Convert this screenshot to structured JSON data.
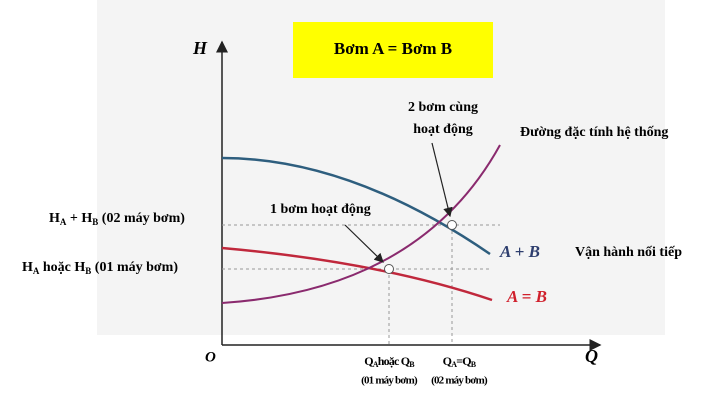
{
  "title": "Bơm A = Bơm B",
  "axis": {
    "y": "H",
    "x": "Q",
    "origin": "O"
  },
  "two_pumps": {
    "line1": "2 bơm cùng",
    "line2": "hoạt động"
  },
  "system_curve": "Đường đặc tính hệ thống",
  "one_pump": "1 bơm hoạt động",
  "curve_sum": "A + B",
  "curve_single": "A = B",
  "series_operation": "Vận hành nối tiếp",
  "h_sum": {
    "h1": "H",
    "s1": "A",
    "mid": " + H",
    "s2": "B",
    "rest": " (02 máy bơm)"
  },
  "h_single": {
    "h1": "H",
    "s1": "A",
    "mid": " hoặc H",
    "s2": "B",
    "rest": " (01 máy bơm)"
  },
  "q_single": {
    "q1": "Q",
    "s1": "A",
    "mid": "hoặc Q",
    "s2": "B",
    "note": "(01 máy bơm)"
  },
  "q_sum": {
    "q1": "Q",
    "s1": "A",
    "mid": "=Q",
    "s2": "B",
    "note": "(02 máy bơm)"
  }
}
